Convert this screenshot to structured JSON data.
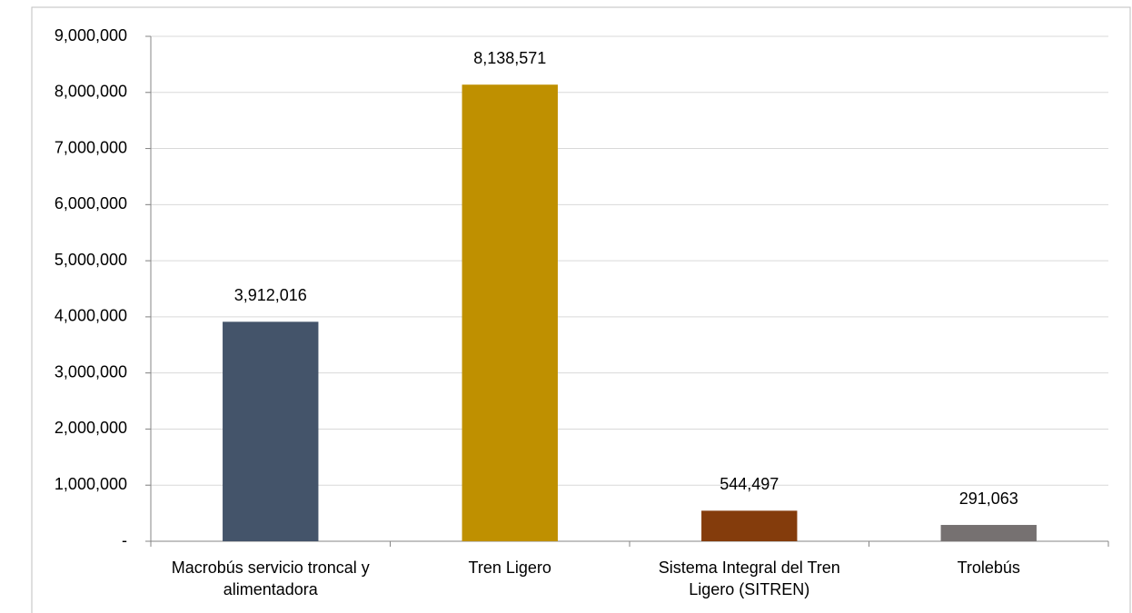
{
  "chart_data": {
    "type": "bar",
    "categories": [
      "Macrobús servicio troncal y alimentadora",
      "Tren Ligero",
      "Sistema Integral del Tren Ligero (SITREN)",
      "Trolebús"
    ],
    "values": [
      3912016,
      8138571,
      544497,
      291063
    ],
    "value_labels": [
      "3,912,016",
      "8,138,571",
      "544,497",
      "291,063"
    ],
    "colors": [
      "#44546a",
      "#bf9000",
      "#843c0c",
      "#767171"
    ],
    "ylim": [
      0,
      9000000
    ],
    "yticks": [
      {
        "value": 0,
        "label": "-"
      },
      {
        "value": 1000000,
        "label": "1,000,000"
      },
      {
        "value": 2000000,
        "label": "2,000,000"
      },
      {
        "value": 3000000,
        "label": "3,000,000"
      },
      {
        "value": 4000000,
        "label": "4,000,000"
      },
      {
        "value": 5000000,
        "label": "5,000,000"
      },
      {
        "value": 6000000,
        "label": "6,000,000"
      },
      {
        "value": 7000000,
        "label": "7,000,000"
      },
      {
        "value": 8000000,
        "label": "8,000,000"
      },
      {
        "value": 9000000,
        "label": "9,000,000"
      }
    ],
    "grid": true
  }
}
